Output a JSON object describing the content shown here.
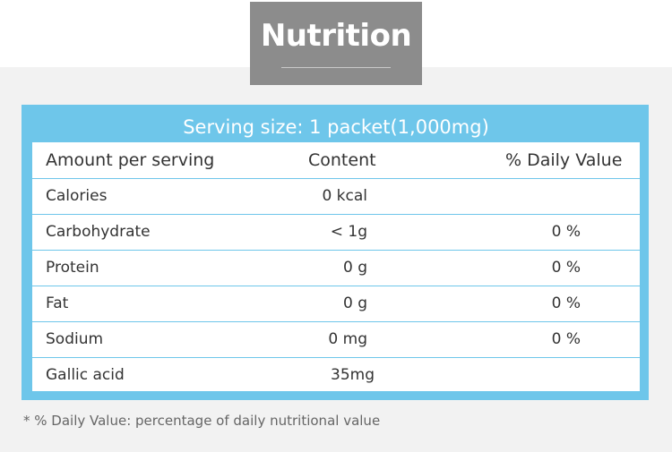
{
  "title": "Nutrition",
  "serving": "Serving size: 1 packet(1,000mg)",
  "columns": {
    "amount": "Amount per serving",
    "content": "Content",
    "daily": "% Daily Value"
  },
  "rows": [
    {
      "name": "Calories",
      "content": "0 kcal",
      "daily": ""
    },
    {
      "name": "Carbohydrate",
      "content": "< 1g",
      "daily": "0 %"
    },
    {
      "name": "Protein",
      "content": "0 g",
      "daily": "0 %"
    },
    {
      "name": "Fat",
      "content": "0 g",
      "daily": "0 %"
    },
    {
      "name": "Sodium",
      "content": "0 mg",
      "daily": "0 %"
    },
    {
      "name": "Gallic acid",
      "content": "35mg",
      "daily": ""
    }
  ],
  "footnote": "* % Daily Value: percentage of daily nutritional value",
  "colors": {
    "accent": "#6ec6ea",
    "title_bg": "#8c8c8c",
    "background": "#f2f2f2"
  }
}
